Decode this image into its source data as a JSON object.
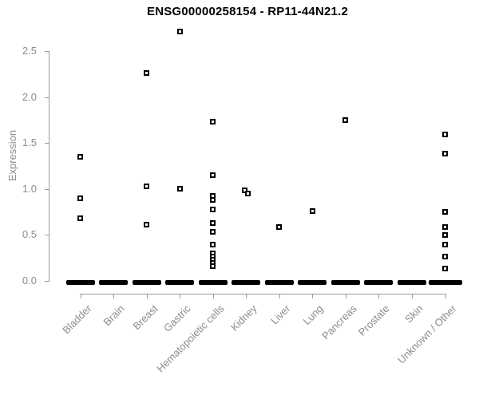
{
  "chart_data": {
    "type": "scatter",
    "title": "ENSG00000258154 - RP11-44N21.2",
    "ylabel": "Expression",
    "xlabel": "",
    "ylim": [
      0,
      2.78
    ],
    "yticks": [
      0.0,
      0.5,
      1.0,
      1.5,
      2.0,
      2.5
    ],
    "ytick_labels": [
      "0.0",
      "0.5",
      "1.0",
      "1.5",
      "2.0",
      "2.5"
    ],
    "grid": false,
    "legend": "none",
    "point_marker": "open-square",
    "point_color": "#000000",
    "axis_color": "#999999",
    "tick_text_color": "#8c8c8c",
    "title_color": "#000000",
    "categories": [
      "Bladder",
      "Brain",
      "Breast",
      "Gastric",
      "Hematopoietic cells",
      "Kidney",
      "Liver",
      "Lung",
      "Pancreas",
      "Prostate",
      "Skin",
      "Unknown / Other"
    ],
    "series": [
      {
        "category": "Bladder",
        "values": [
          1.35,
          0.9,
          0.68
        ],
        "zero_bar": true
      },
      {
        "category": "Brain",
        "values": [],
        "zero_bar": true
      },
      {
        "category": "Breast",
        "values": [
          2.26,
          1.03,
          0.61
        ],
        "zero_bar": true
      },
      {
        "category": "Gastric",
        "values": [
          2.71,
          1.0
        ],
        "zero_bar": true
      },
      {
        "category": "Hematopoietic cells",
        "values": [
          1.73,
          1.15,
          0.92,
          0.88,
          0.77,
          0.63,
          0.53,
          0.39,
          0.3,
          0.26,
          0.23,
          0.19,
          0.16
        ],
        "zero_bar": true
      },
      {
        "category": "Kidney",
        "values": [
          0.98,
          0.95
        ],
        "jitter": [
          -2,
          2
        ],
        "zero_bar": true
      },
      {
        "category": "Liver",
        "values": [
          0.58
        ],
        "zero_bar": true
      },
      {
        "category": "Lung",
        "values": [
          0.76
        ],
        "zero_bar": true
      },
      {
        "category": "Pancreas",
        "values": [
          1.75
        ],
        "zero_bar": true
      },
      {
        "category": "Prostate",
        "values": [],
        "zero_bar": true
      },
      {
        "category": "Skin",
        "values": [],
        "zero_bar": true
      },
      {
        "category": "Unknown / Other",
        "values": [
          1.59,
          1.38,
          0.75,
          0.58,
          0.5,
          0.39,
          0.26,
          0.13
        ],
        "zero_bar": true
      }
    ]
  }
}
